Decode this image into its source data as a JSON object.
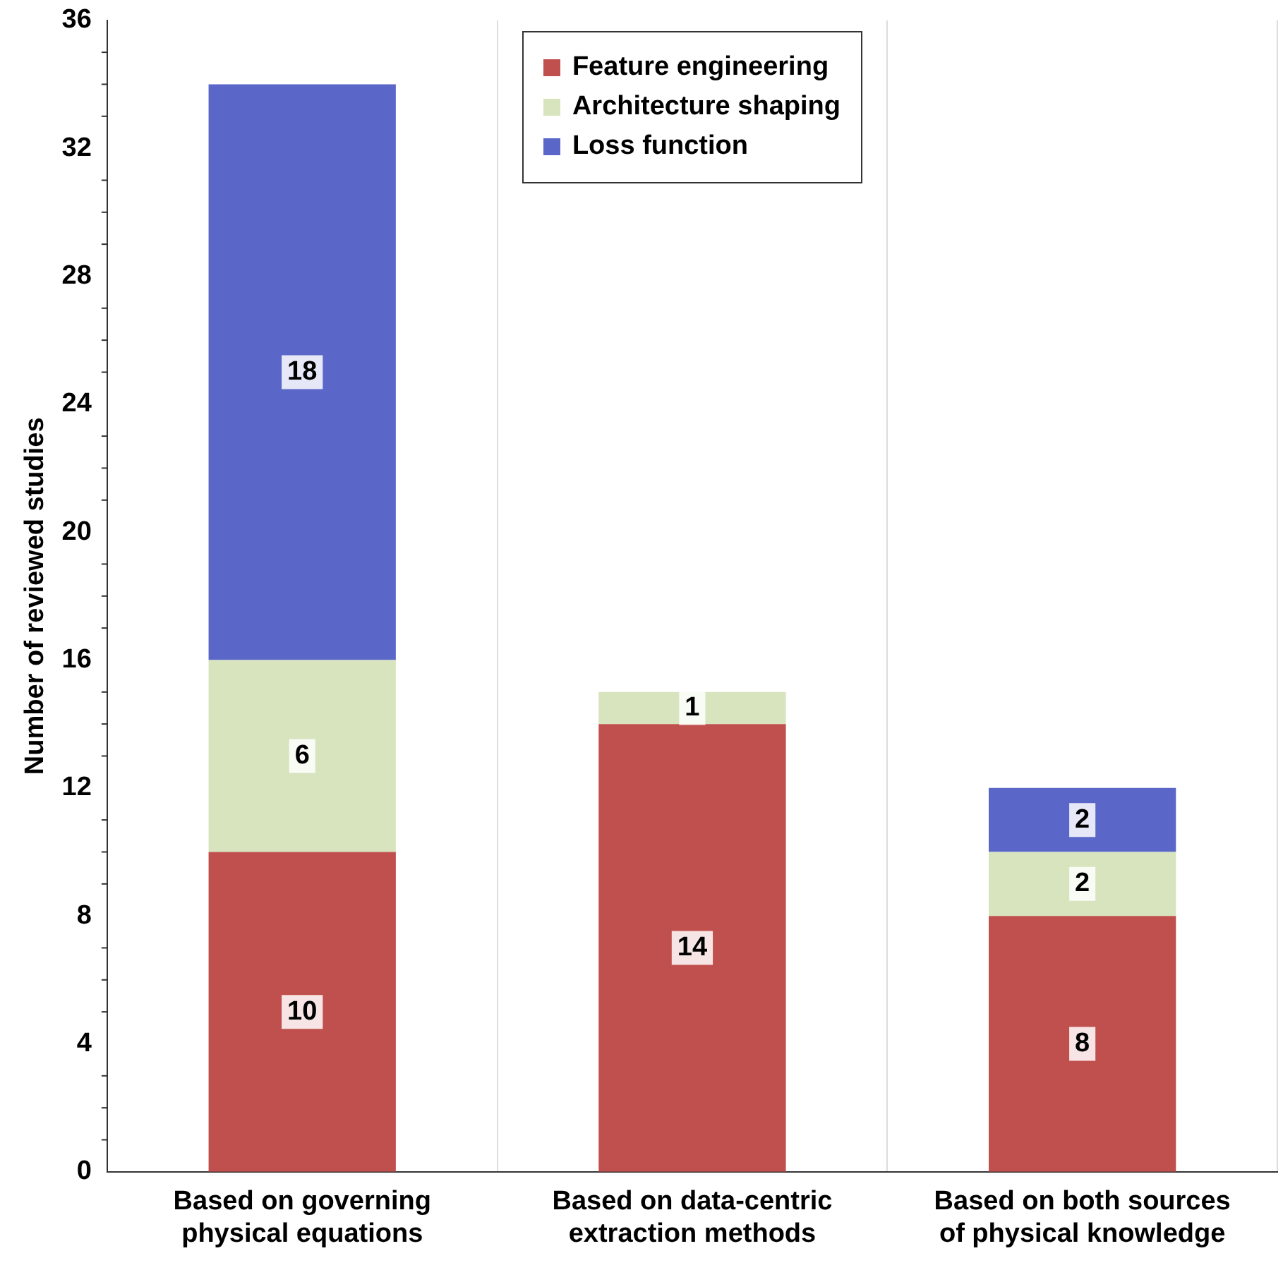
{
  "chart_data": {
    "type": "bar",
    "stacked": true,
    "ylabel": "Number of reviewed studies",
    "categories": [
      "Based on governing physical equations",
      "Based on data-centric extraction methods",
      "Based on both sources of physical knowledge"
    ],
    "series": [
      {
        "name": "Feature engineering",
        "color": "#c0504d",
        "values": [
          10,
          14,
          8
        ]
      },
      {
        "name": "Architecture shaping",
        "color": "#d7e4bd",
        "values": [
          6,
          1,
          2
        ]
      },
      {
        "name": "Loss function",
        "color": "#5b67c8",
        "values": [
          18,
          null,
          2
        ]
      }
    ],
    "ylim": [
      0,
      36
    ],
    "yticks": [
      0,
      4,
      8,
      12,
      16,
      20,
      24,
      28,
      32,
      36
    ],
    "grid": "x",
    "legend": "top",
    "data_labels": true
  }
}
